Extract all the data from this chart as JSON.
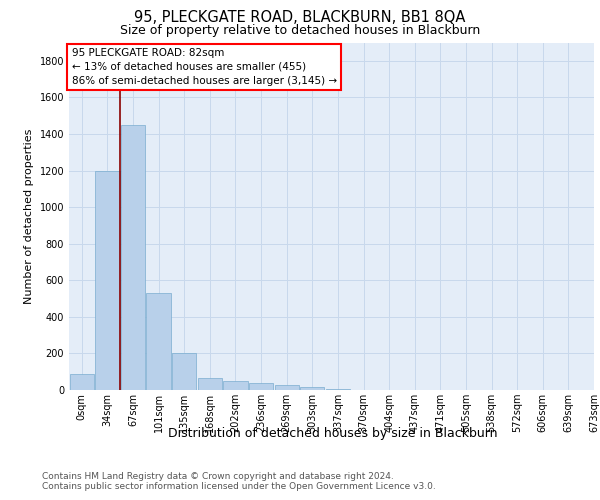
{
  "title": "95, PLECKGATE ROAD, BLACKBURN, BB1 8QA",
  "subtitle": "Size of property relative to detached houses in Blackburn",
  "xlabel": "Distribution of detached houses by size in Blackburn",
  "ylabel": "Number of detached properties",
  "bar_values": [
    90,
    1200,
    1450,
    530,
    205,
    65,
    48,
    37,
    28,
    15,
    8,
    0,
    0,
    0,
    0,
    0,
    0,
    0,
    0,
    0
  ],
  "bar_color": "#b8d0ea",
  "bar_edge_color": "#7aadcf",
  "x_labels": [
    "0sqm",
    "34sqm",
    "67sqm",
    "101sqm",
    "135sqm",
    "168sqm",
    "202sqm",
    "236sqm",
    "269sqm",
    "303sqm",
    "337sqm",
    "370sqm",
    "404sqm",
    "437sqm",
    "471sqm",
    "505sqm",
    "538sqm",
    "572sqm",
    "606sqm",
    "639sqm",
    "673sqm"
  ],
  "ylim": [
    0,
    1900
  ],
  "yticks": [
    0,
    200,
    400,
    600,
    800,
    1000,
    1200,
    1400,
    1600,
    1800
  ],
  "annotation_line1": "95 PLECKGATE ROAD: 82sqm",
  "annotation_line2": "← 13% of detached houses are smaller (455)",
  "annotation_line3": "86% of semi-detached houses are larger (3,145) →",
  "redline_x": 1.5,
  "footer_line1": "Contains HM Land Registry data © Crown copyright and database right 2024.",
  "footer_line2": "Contains public sector information licensed under the Open Government Licence v3.0.",
  "grid_color": "#c8d8ec",
  "background_color": "#e4edf8",
  "title_fontsize": 10.5,
  "subtitle_fontsize": 9,
  "xlabel_fontsize": 9,
  "ylabel_fontsize": 8,
  "tick_fontsize": 7,
  "annotation_fontsize": 7.5,
  "footer_fontsize": 6.5
}
